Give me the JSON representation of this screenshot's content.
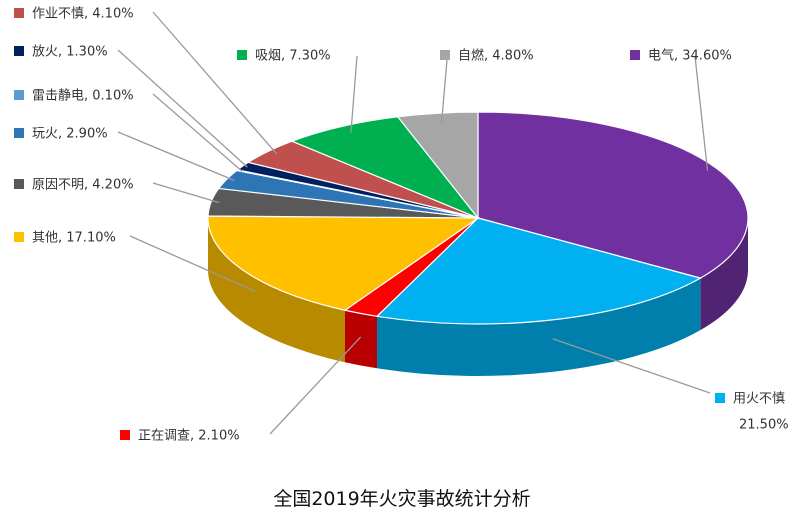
{
  "chart_data": {
    "type": "pie",
    "title": "全国2019年火灾事故统计分析",
    "unit": "%",
    "slices": [
      {
        "name": "电气",
        "label": "电气, 34.60%",
        "value": 34.6,
        "color": "#7030A0"
      },
      {
        "name": "用火不慎",
        "label": "用火不慎",
        "label2": "21.50%",
        "value": 21.5,
        "color": "#00B0F0"
      },
      {
        "name": "正在调查",
        "label": "正在调查, 2.10%",
        "value": 2.1,
        "color": "#FF0000"
      },
      {
        "name": "其他",
        "label": "其他, 17.10%",
        "value": 17.1,
        "color": "#FFC000"
      },
      {
        "name": "原因不明",
        "label": "原因不明, 4.20%",
        "value": 4.2,
        "color": "#595959"
      },
      {
        "name": "玩火",
        "label": "玩火, 2.90%",
        "value": 2.9,
        "color": "#2E75B6"
      },
      {
        "name": "雷击静电",
        "label": "雷击静电, 0.10%",
        "value": 0.1,
        "color": "#5B9BD5"
      },
      {
        "name": "放火",
        "label": "放火, 1.30%",
        "value": 1.3,
        "color": "#002060"
      },
      {
        "name": "作业不慎",
        "label": "作业不慎, 4.10%",
        "value": 4.1,
        "color": "#C0504D"
      },
      {
        "name": "吸烟",
        "label": "吸烟, 7.30%",
        "value": 7.3,
        "color": "#00B050"
      },
      {
        "name": "自燃",
        "label": "自燃, 4.80%",
        "value": 4.8,
        "color": "#A6A6A6"
      }
    ]
  }
}
